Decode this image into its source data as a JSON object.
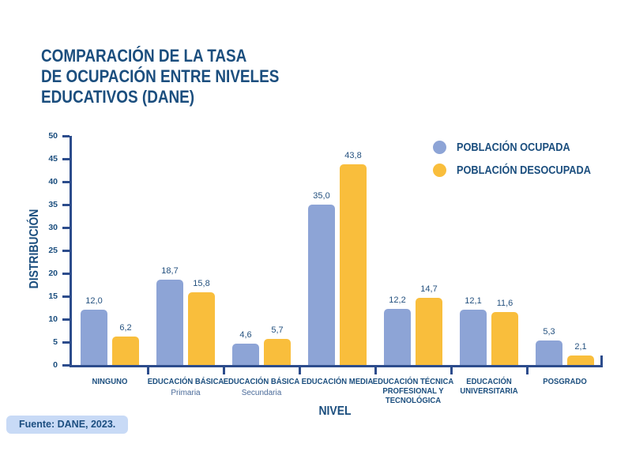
{
  "colors": {
    "dark_blue": "#1B4E7E",
    "axis_blue": "#2C4C8C",
    "bar_blue": "#8DA4D6",
    "bar_yellow": "#F9BE3C",
    "source_badge_bg": "#C8DAF6",
    "background": "#FFFFFF"
  },
  "title": {
    "lines": [
      "COMPARACIÓN DE LA TASA",
      "DE OCUPACIÓN ENTRE NIVELES",
      "EDUCATIVOS (DANE)"
    ]
  },
  "legend": {
    "items": [
      {
        "label": "POBLACIÓN OCUPADA",
        "color": "#8DA4D6"
      },
      {
        "label": "POBLACIÓN DESOCUPADA",
        "color": "#F9BE3C"
      }
    ]
  },
  "source": {
    "label": "Fuente: DANE, 2023."
  },
  "chart_data": {
    "type": "bar",
    "title": "COMPARACIÓN DE LA TASA DE OCUPACIÓN ENTRE NIVELES EDUCATIVOS (DANE)",
    "xlabel": "NIVEL",
    "ylabel": "DISTRIBUCIÓN",
    "ylim": [
      0,
      50
    ],
    "ytick_step": 5,
    "grid": false,
    "legend_position": "top-right",
    "decimal_separator": ",",
    "categories": [
      {
        "lines": [
          "NINGUNO"
        ],
        "sub": ""
      },
      {
        "lines": [
          "EDUCACIÓN BÁSICA"
        ],
        "sub": "Primaria"
      },
      {
        "lines": [
          "EDUCACIÓN BÁSICA"
        ],
        "sub": "Secundaria"
      },
      {
        "lines": [
          "EDUCACIÓN MEDIA"
        ],
        "sub": ""
      },
      {
        "lines": [
          "EDUCACIÓN TÉCNICA",
          "PROFESIONAL Y",
          "TECNOLÓGICA"
        ],
        "sub": ""
      },
      {
        "lines": [
          "EDUCACIÓN",
          "UNIVERSITARIA"
        ],
        "sub": ""
      },
      {
        "lines": [
          "POSGRADO"
        ],
        "sub": ""
      }
    ],
    "series": [
      {
        "name": "POBLACIÓN OCUPADA",
        "color": "#8DA4D6",
        "values": [
          12.0,
          18.7,
          4.6,
          35.0,
          12.2,
          12.1,
          5.3
        ]
      },
      {
        "name": "POBLACIÓN DESOCUPADA",
        "color": "#F9BE3C",
        "values": [
          6.2,
          15.8,
          5.7,
          43.8,
          14.7,
          11.6,
          2.1
        ]
      }
    ]
  }
}
